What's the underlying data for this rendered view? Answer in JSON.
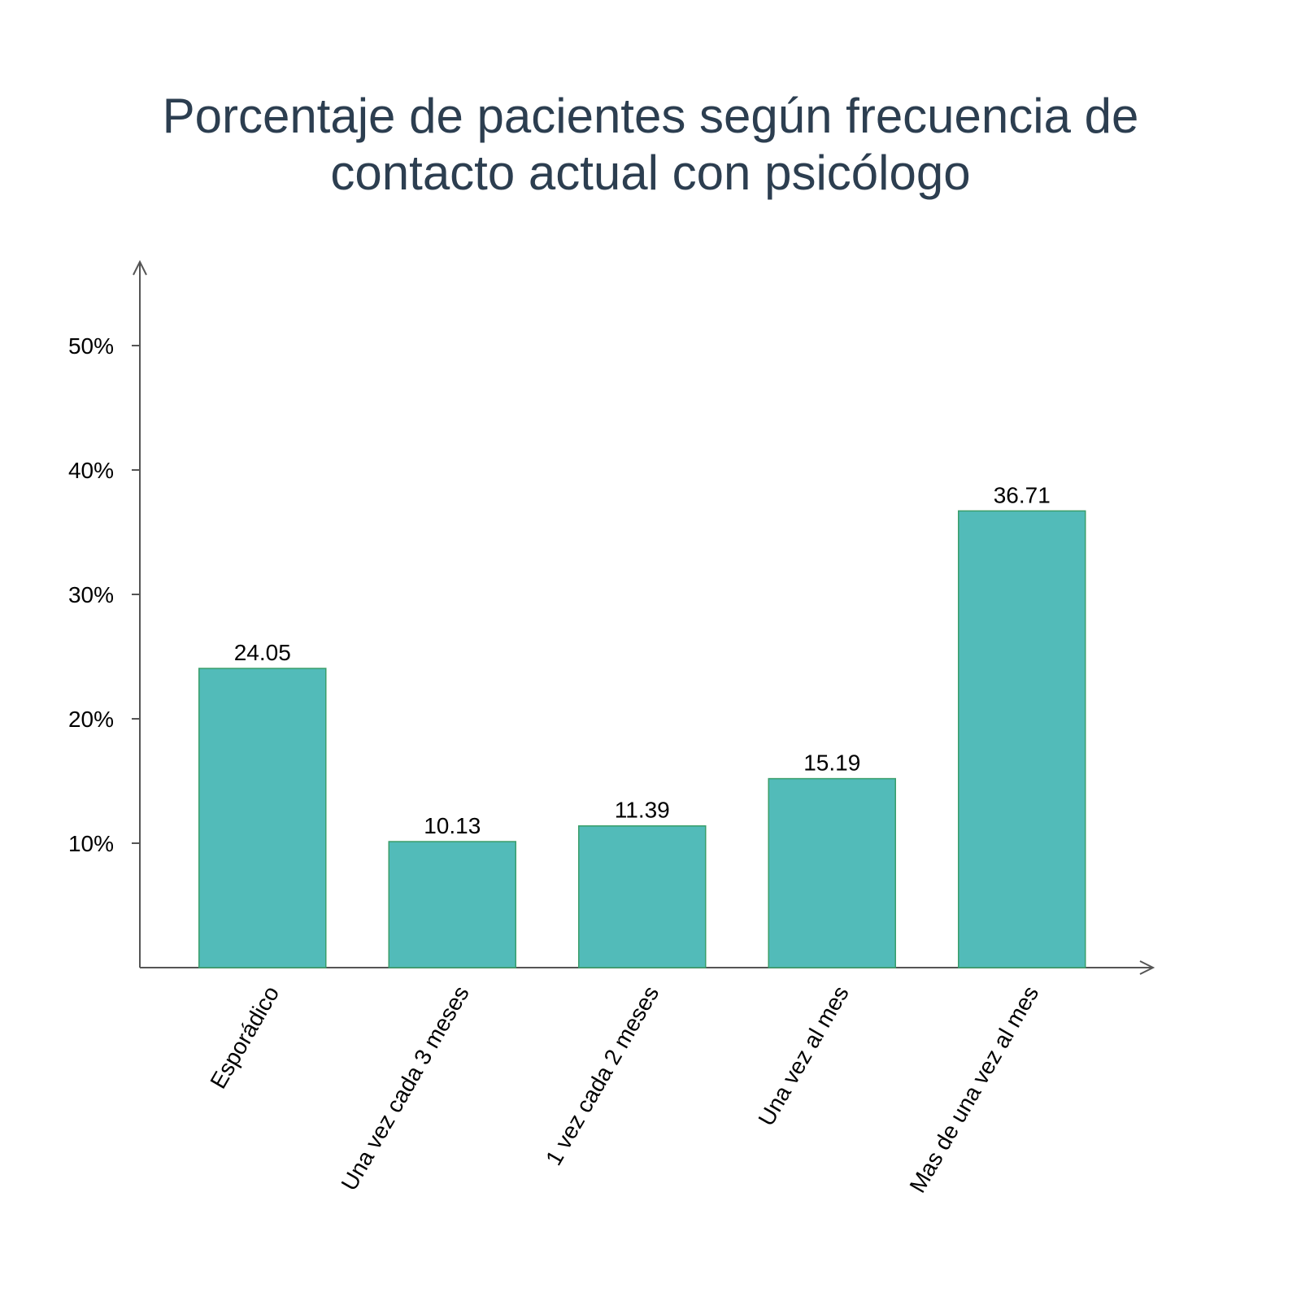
{
  "chart_data": {
    "type": "bar",
    "title_lines": [
      "Porcentaje de pacientes según frecuencia de",
      "contacto actual con psicólogo"
    ],
    "categories": [
      "Esporádico",
      "Una vez cada 3 meses",
      "1 vez cada 2 meses",
      "Una vez al mes",
      "Mas de una vez al mes"
    ],
    "values": [
      24.05,
      10.13,
      11.39,
      15.19,
      36.71
    ],
    "data_labels": [
      "24.05",
      "10.13",
      "11.39",
      "15.19",
      "36.71"
    ],
    "y_ticks": [
      10,
      20,
      30,
      40,
      50
    ],
    "y_tick_labels": [
      "10%",
      "20%",
      "30%",
      "40%",
      "50%"
    ],
    "ylim": [
      0,
      56.7
    ],
    "xlabel": "",
    "ylabel": "",
    "grid": false,
    "legend": "none",
    "colors": {
      "bar_fill": "#52bbb9",
      "bar_stroke": "#3a9e6a",
      "axis": "#555555",
      "title": "#2c3e50"
    }
  }
}
